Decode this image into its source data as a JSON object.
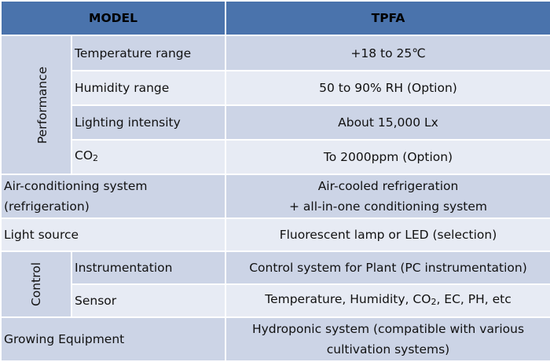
{
  "header": {
    "model_label": "MODEL",
    "model_value": "TPFA"
  },
  "performance": {
    "group_label": "Performance",
    "rows": [
      {
        "label": "Temperature range",
        "value": "+18 to 25℃"
      },
      {
        "label": "Humidity range",
        "value": "50 to 90% RH (Option)"
      },
      {
        "label": "Lighting intensity",
        "value": "About 15,000 Lx"
      },
      {
        "label_main": "CO",
        "label_sub": "2",
        "value": "To 2000ppm (Option)"
      }
    ]
  },
  "air_conditioning": {
    "label_line1": "Air-conditioning system",
    "label_line2": "(refrigeration)",
    "value_line1": "Air-cooled refrigeration",
    "value_line2": "+ all-in-one conditioning system"
  },
  "light_source": {
    "label": "Light source",
    "value": "Fluorescent lamp or LED (selection)"
  },
  "control": {
    "group_label": "Control",
    "instrumentation": {
      "label": "Instrumentation",
      "value": "Control system for Plant (PC instrumentation)"
    },
    "sensor": {
      "label": "Sensor",
      "value_pre": "Temperature, Humidity, CO",
      "value_sub": "2",
      "value_post": ", EC, PH, etc"
    }
  },
  "growing_equipment": {
    "label": "Growing Equipment",
    "value_line1": "Hydroponic system (compatible with various",
    "value_line2": "cultivation systems)"
  },
  "colors": {
    "header": "#4a73ac",
    "dark_row": "#ccd4e6",
    "light_row": "#e7ebf4"
  }
}
